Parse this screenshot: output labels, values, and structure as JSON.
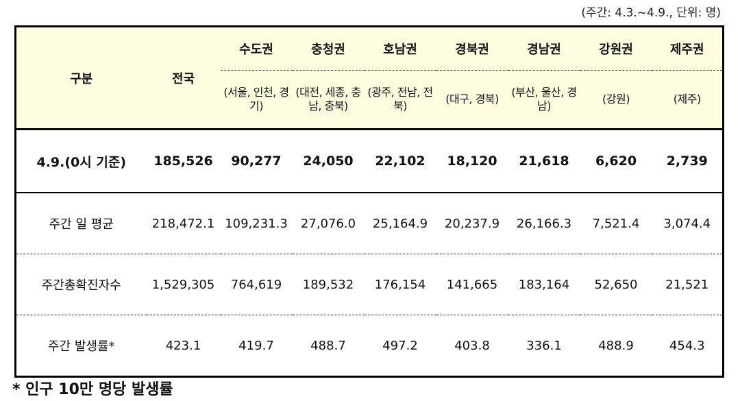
{
  "unit_note": "(주간: 4.3.~4.9., 단위: 명)",
  "header": {
    "category": "구분",
    "nationwide": "전국",
    "regions": [
      {
        "name": "수도권",
        "sub": "(서울, 인천, 경기)"
      },
      {
        "name": "충청권",
        "sub": "(대전, 세종, 충남, 충북)"
      },
      {
        "name": "호남권",
        "sub": "(광주, 전남, 전북)"
      },
      {
        "name": "경북권",
        "sub": "(대구, 경북)"
      },
      {
        "name": "경남권",
        "sub": "(부산, 울산, 경남)"
      },
      {
        "name": "강원권",
        "sub": "(강원)"
      },
      {
        "name": "제주권",
        "sub": "(제주)"
      }
    ]
  },
  "rows": [
    {
      "label": "4.9.(0시 기준)",
      "values": [
        "185,526",
        "90,277",
        "24,050",
        "22,102",
        "18,120",
        "21,618",
        "6,620",
        "2,739"
      ]
    },
    {
      "label": "주간 일 평균",
      "values": [
        "218,472.1",
        "109,231.3",
        "27,076.0",
        "25,164.9",
        "20,237.9",
        "26,166.3",
        "7,521.4",
        "3,074.4"
      ]
    },
    {
      "label": "주간총확진자수",
      "values": [
        "1,529,305",
        "764,619",
        "189,532",
        "176,154",
        "141,665",
        "183,164",
        "52,650",
        "21,521"
      ]
    },
    {
      "label": "주간 발생률*",
      "values": [
        "423.1",
        "419.7",
        "488.7",
        "497.2",
        "403.8",
        "336.1",
        "488.9",
        "454.3"
      ]
    }
  ],
  "footnote": "* 인구 10만 명당 발생률"
}
